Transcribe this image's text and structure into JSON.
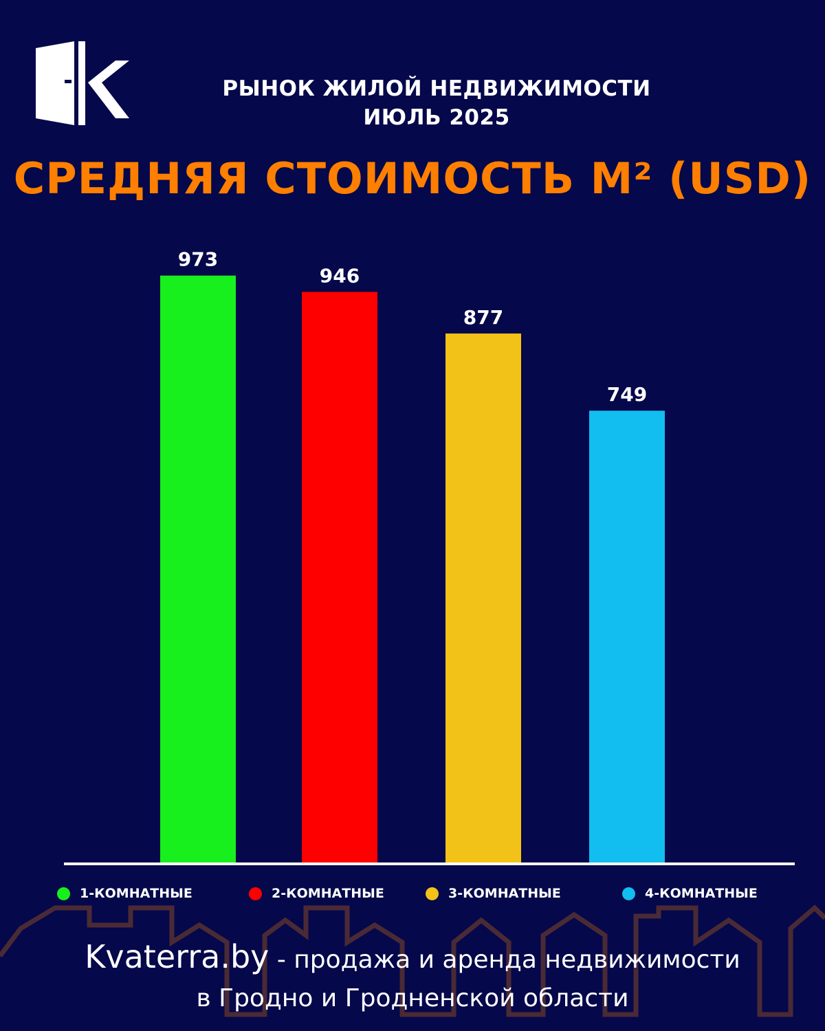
{
  "header": {
    "line1": "РЫНОК ЖИЛОЙ НЕДВИЖИМОСТИ",
    "line2": "ИЮЛЬ 2025"
  },
  "logo": {
    "icon": "door-k-logo-icon",
    "color": "#ffffff"
  },
  "chart_data": {
    "type": "bar",
    "title": "СРЕДНЯЯ СТОИМОСТЬ М² (USD)",
    "categories": [
      "1-КОМНАТНЫЕ",
      "2-КОМНАТНЫЕ",
      "3-КОМНАТНЫЕ",
      "4-КОМНАТНЫЕ"
    ],
    "values": [
      973,
      946,
      877,
      749
    ],
    "colors": [
      "#18f01e",
      "#ff0000",
      "#f2c218",
      "#12bdf0"
    ],
    "ylim": [
      0,
      1000
    ],
    "grid": false,
    "legend": "bottom",
    "data_labels": true
  },
  "footer": {
    "site": "Kvaterra.by",
    "line1_rest": " - продажа и аренда недвижимости",
    "line2": "в Гродно и Гродненской области"
  },
  "colors": {
    "background": "#05084a",
    "title_accent": "#ff7f00",
    "text": "#ffffff",
    "skyline": "#4a2a35"
  }
}
